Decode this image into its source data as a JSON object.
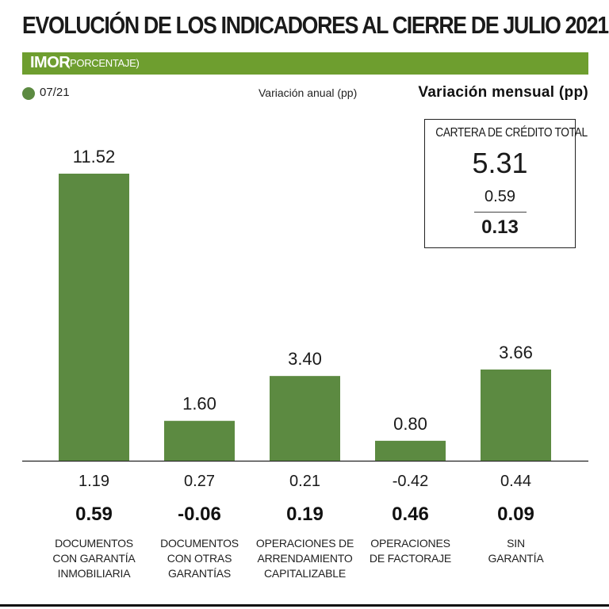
{
  "header": {
    "title": "EVOLUCIÓN DE LOS INDICADORES AL CIERRE DE JULIO 2021",
    "section_title": "IMOR",
    "section_subtitle": "(PORCENTAJE)"
  },
  "legend": {
    "series_label": "07/21",
    "annual_label": "Variación anual (pp)",
    "monthly_label": "Variación mensual (pp)"
  },
  "total": {
    "title": "CARTERA DE CRÉDITO TOTAL",
    "value": "5.31",
    "annual_change": "0.59",
    "monthly_change": "0.13"
  },
  "colors": {
    "band": "#6e9e2f",
    "bar": "#5c8a41"
  },
  "chart_data": {
    "type": "bar",
    "categories": [
      [
        "DOCUMENTOS",
        "CON GARANTÍA",
        "INMOBILIARIA"
      ],
      [
        "DOCUMENTOS",
        "CON OTRAS",
        "GARANTÍAS"
      ],
      [
        "OPERACIONES DE",
        "ARRENDAMIENTO",
        "CAPITALIZABLE"
      ],
      [
        "OPERACIONES",
        "DE FACTORAJE"
      ],
      [
        "SIN",
        "GARANTÍA"
      ]
    ],
    "series": [
      {
        "name": "07/21",
        "values": [
          11.52,
          1.6,
          3.4,
          0.8,
          3.66
        ]
      }
    ],
    "value_labels": [
      "11.52",
      "1.60",
      "3.40",
      "0.80",
      "3.66"
    ],
    "annual_change": [
      "1.19",
      "0.27",
      "0.21",
      "-0.42",
      "0.44"
    ],
    "monthly_change": [
      "0.59",
      "-0.06",
      "0.19",
      "0.46",
      "0.09"
    ],
    "ylim": [
      0,
      11.52
    ],
    "grid": false
  }
}
